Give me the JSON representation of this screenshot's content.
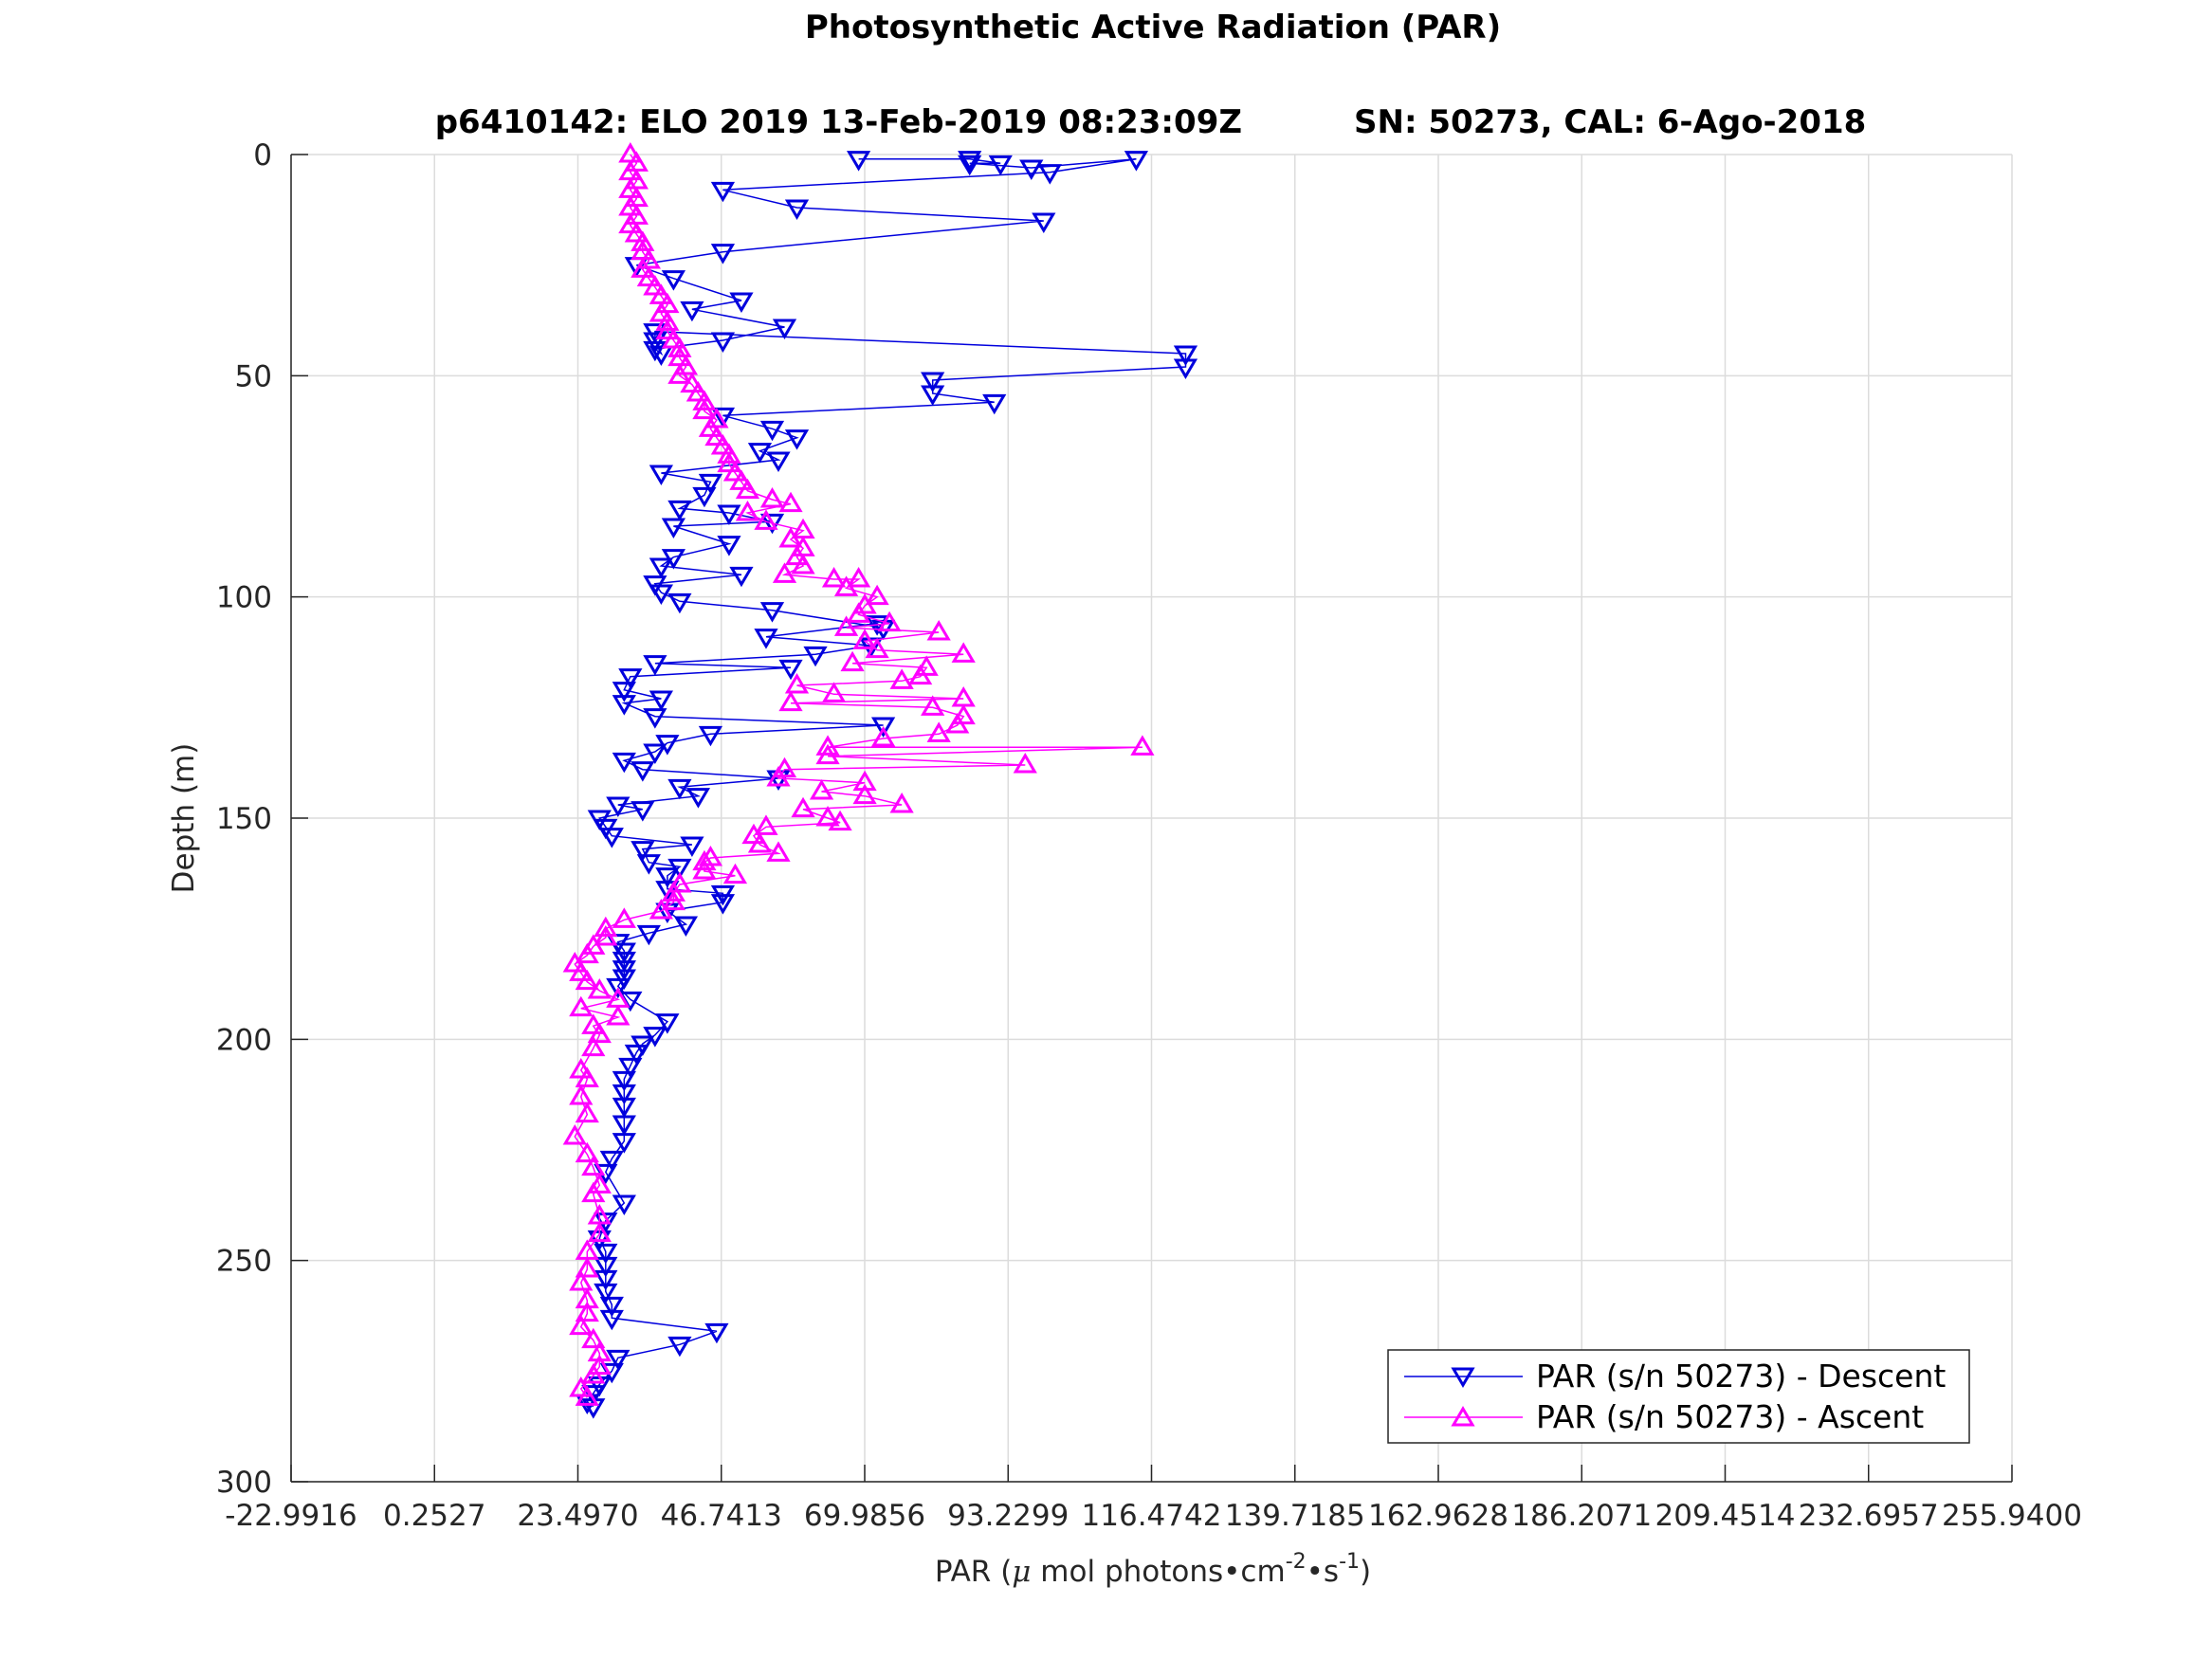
{
  "chart_data": {
    "type": "line",
    "title": "Photosynthetic Active Radiation (PAR)",
    "subtitle_left": "p6410142: ELO 2019 13-Feb-2019 08:23:09Z",
    "subtitle_right": "SN: 50273, CAL: 6-Ago-2018",
    "xlabel_prefix": "PAR (",
    "xlabel_mu": "μ",
    "xlabel_main": " mol photons•cm",
    "xlabel_sup1": "-2",
    "xlabel_mid": "•s",
    "xlabel_sup2": "-1",
    "xlabel_suffix": ")",
    "ylabel": "Depth (m)",
    "xlim": [
      -22.9916,
      255.94
    ],
    "ylim": [
      0,
      300
    ],
    "y_reversed": true,
    "grid": true,
    "legend_position": "bottom-right",
    "xticks": [
      -22.9916,
      0.2527,
      23.497,
      46.7413,
      69.9856,
      93.2299,
      116.4742,
      139.7185,
      162.9628,
      186.2071,
      209.4514,
      232.6957,
      255.94
    ],
    "xtick_labels": [
      "-22.9916",
      "0.2527",
      "23.4970",
      "46.7413",
      "69.9856",
      "93.2299",
      "116.4742",
      "139.7185",
      "162.9628",
      "186.2071",
      "209.4514",
      "232.6957",
      "255.9400"
    ],
    "yticks": [
      0,
      50,
      100,
      150,
      200,
      250,
      300
    ],
    "ytick_labels": [
      "0",
      "50",
      "100",
      "150",
      "200",
      "250",
      "300"
    ],
    "series": [
      {
        "name": "PAR (s/n 50273) - Descent",
        "color": "#0000dd",
        "marker": "triangle-down",
        "points": [
          [
            69,
            1
          ],
          [
            87,
            1
          ],
          [
            92,
            2
          ],
          [
            87,
            2
          ],
          [
            97,
            3
          ],
          [
            114,
            1
          ],
          [
            100,
            4
          ],
          [
            47,
            8
          ],
          [
            59,
            12
          ],
          [
            99,
            15
          ],
          [
            47,
            22
          ],
          [
            33,
            25
          ],
          [
            39,
            28
          ],
          [
            50,
            33
          ],
          [
            42,
            35
          ],
          [
            57,
            39
          ],
          [
            47,
            42
          ],
          [
            36,
            44
          ],
          [
            37,
            45
          ],
          [
            36,
            42
          ],
          [
            36,
            40
          ],
          [
            122,
            45
          ],
          [
            122,
            48
          ],
          [
            81,
            51
          ],
          [
            81,
            54
          ],
          [
            91,
            56
          ],
          [
            47,
            59
          ],
          [
            55,
            62
          ],
          [
            59,
            64
          ],
          [
            53,
            67
          ],
          [
            56,
            69
          ],
          [
            37,
            72
          ],
          [
            45,
            74
          ],
          [
            44,
            77
          ],
          [
            40,
            80
          ],
          [
            48,
            81
          ],
          [
            55,
            83
          ],
          [
            39,
            84
          ],
          [
            48,
            88
          ],
          [
            39,
            91
          ],
          [
            37,
            93
          ],
          [
            50,
            95
          ],
          [
            36,
            97
          ],
          [
            37,
            99
          ],
          [
            40,
            101
          ],
          [
            55,
            103
          ],
          [
            73,
            107
          ],
          [
            72,
            106
          ],
          [
            54,
            109
          ],
          [
            71,
            111
          ],
          [
            62,
            113
          ],
          [
            36,
            115
          ],
          [
            58,
            116
          ],
          [
            32,
            118
          ],
          [
            31,
            121
          ],
          [
            37,
            123
          ],
          [
            31,
            124
          ],
          [
            36,
            127
          ],
          [
            73,
            129
          ],
          [
            45,
            131
          ],
          [
            38,
            133
          ],
          [
            36,
            135
          ],
          [
            31,
            137
          ],
          [
            34,
            139
          ],
          [
            56,
            141
          ],
          [
            40,
            143
          ],
          [
            43,
            145
          ],
          [
            30,
            147
          ],
          [
            34,
            148
          ],
          [
            27,
            150
          ],
          [
            28,
            152
          ],
          [
            29,
            154
          ],
          [
            42,
            156
          ],
          [
            34,
            157
          ],
          [
            35,
            160
          ],
          [
            40,
            161
          ],
          [
            38,
            163
          ],
          [
            38,
            166
          ],
          [
            47,
            167
          ],
          [
            47,
            169
          ],
          [
            38,
            171
          ],
          [
            41,
            174
          ],
          [
            35,
            176
          ],
          [
            30,
            178
          ],
          [
            31,
            180
          ],
          [
            31,
            182
          ],
          [
            31,
            184
          ],
          [
            31,
            186
          ],
          [
            30,
            188
          ],
          [
            32,
            191
          ],
          [
            38,
            196
          ],
          [
            36,
            199
          ],
          [
            34,
            201
          ],
          [
            33,
            203
          ],
          [
            32,
            206
          ],
          [
            31,
            209
          ],
          [
            31,
            212
          ],
          [
            31,
            215
          ],
          [
            31,
            219
          ],
          [
            31,
            223
          ],
          [
            29,
            227
          ],
          [
            28,
            230
          ],
          [
            31,
            237
          ],
          [
            28,
            241
          ],
          [
            27,
            245
          ],
          [
            28,
            248
          ],
          [
            28,
            251
          ],
          [
            28,
            254
          ],
          [
            28,
            257
          ],
          [
            29,
            260
          ],
          [
            29,
            263
          ],
          [
            46,
            266
          ],
          [
            40,
            269
          ],
          [
            30,
            272
          ],
          [
            29,
            275
          ],
          [
            27,
            278
          ],
          [
            26,
            280
          ],
          [
            25,
            282
          ],
          [
            26,
            283
          ]
        ]
      },
      {
        "name": "PAR (s/n 50273) - Ascent",
        "color": "#ff00ff",
        "marker": "triangle-up",
        "points": [
          [
            32,
            0
          ],
          [
            33,
            2
          ],
          [
            32,
            4
          ],
          [
            33,
            6
          ],
          [
            32,
            8
          ],
          [
            33,
            10
          ],
          [
            32,
            12
          ],
          [
            33,
            14
          ],
          [
            32,
            16
          ],
          [
            33,
            18
          ],
          [
            34,
            20
          ],
          [
            34,
            22
          ],
          [
            35,
            24
          ],
          [
            34,
            26
          ],
          [
            35,
            28
          ],
          [
            36,
            30
          ],
          [
            37,
            32
          ],
          [
            38,
            34
          ],
          [
            37,
            36
          ],
          [
            38,
            38
          ],
          [
            38,
            40
          ],
          [
            39,
            42
          ],
          [
            40,
            44
          ],
          [
            40,
            46
          ],
          [
            41,
            48
          ],
          [
            40,
            50
          ],
          [
            42,
            52
          ],
          [
            43,
            54
          ],
          [
            44,
            56
          ],
          [
            44,
            58
          ],
          [
            46,
            60
          ],
          [
            45,
            62
          ],
          [
            46,
            64
          ],
          [
            47,
            66
          ],
          [
            48,
            68
          ],
          [
            48,
            70
          ],
          [
            49,
            72
          ],
          [
            50,
            74
          ],
          [
            51,
            76
          ],
          [
            55,
            78
          ],
          [
            58,
            79
          ],
          [
            51,
            81
          ],
          [
            54,
            83
          ],
          [
            60,
            85
          ],
          [
            58,
            87
          ],
          [
            60,
            89
          ],
          [
            59,
            91
          ],
          [
            60,
            93
          ],
          [
            57,
            95
          ],
          [
            65,
            96
          ],
          [
            69,
            96
          ],
          [
            67,
            98
          ],
          [
            72,
            100
          ],
          [
            70,
            102
          ],
          [
            69,
            104
          ],
          [
            74,
            106
          ],
          [
            67,
            107
          ],
          [
            82,
            108
          ],
          [
            70,
            110
          ],
          [
            72,
            112
          ],
          [
            86,
            113
          ],
          [
            68,
            115
          ],
          [
            80,
            116
          ],
          [
            79,
            118
          ],
          [
            76,
            119
          ],
          [
            59,
            120
          ],
          [
            65,
            122
          ],
          [
            86,
            123
          ],
          [
            58,
            124
          ],
          [
            81,
            125
          ],
          [
            86,
            127
          ],
          [
            85,
            129
          ],
          [
            82,
            131
          ],
          [
            73,
            132
          ],
          [
            64,
            134
          ],
          [
            115,
            134
          ],
          [
            64,
            136
          ],
          [
            96,
            138
          ],
          [
            57,
            139
          ],
          [
            56,
            141
          ],
          [
            70,
            142
          ],
          [
            63,
            144
          ],
          [
            70,
            145
          ],
          [
            76,
            147
          ],
          [
            60,
            148
          ],
          [
            64,
            150
          ],
          [
            66,
            151
          ],
          [
            54,
            152
          ],
          [
            52,
            154
          ],
          [
            53,
            156
          ],
          [
            56,
            158
          ],
          [
            45,
            159
          ],
          [
            44,
            160
          ],
          [
            44,
            162
          ],
          [
            49,
            163
          ],
          [
            40,
            165
          ],
          [
            39,
            167
          ],
          [
            39,
            169
          ],
          [
            37,
            171
          ],
          [
            31,
            173
          ],
          [
            28,
            175
          ],
          [
            28,
            177
          ],
          [
            26,
            179
          ],
          [
            25,
            181
          ],
          [
            23,
            183
          ],
          [
            24,
            185
          ],
          [
            25,
            187
          ],
          [
            27,
            189
          ],
          [
            30,
            191
          ],
          [
            24,
            193
          ],
          [
            30,
            195
          ],
          [
            26,
            197
          ],
          [
            27,
            199
          ],
          [
            26,
            202
          ],
          [
            24,
            207
          ],
          [
            25,
            209
          ],
          [
            24,
            213
          ],
          [
            25,
            217
          ],
          [
            23,
            222
          ],
          [
            25,
            226
          ],
          [
            26,
            229
          ],
          [
            27,
            233
          ],
          [
            26,
            235
          ],
          [
            27,
            240
          ],
          [
            27,
            244
          ],
          [
            25,
            248
          ],
          [
            25,
            252
          ],
          [
            24,
            255
          ],
          [
            25,
            259
          ],
          [
            25,
            262
          ],
          [
            24,
            265
          ],
          [
            26,
            268
          ],
          [
            27,
            271
          ],
          [
            27,
            274
          ],
          [
            26,
            276
          ],
          [
            24,
            279
          ],
          [
            25,
            281
          ]
        ]
      }
    ]
  }
}
